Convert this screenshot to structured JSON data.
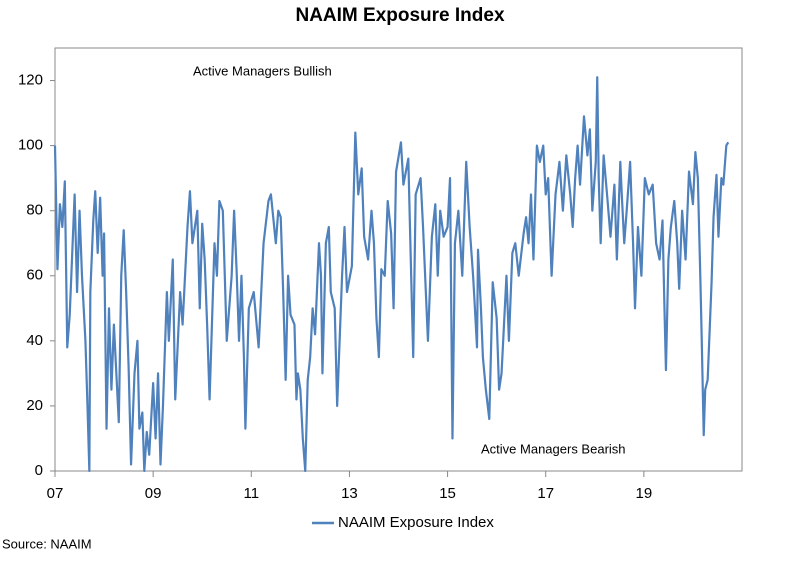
{
  "chart_data": {
    "type": "line",
    "title": "NAAIM Exposure Index",
    "annotations": [
      "Active Managers Bullish",
      "Active Managers Bearish"
    ],
    "source": "Source: NAAIM",
    "xlim": [
      2007,
      2021
    ],
    "xticks": [
      {
        "value": 2007,
        "label": "07"
      },
      {
        "value": 2009,
        "label": "09"
      },
      {
        "value": 2011,
        "label": "11"
      },
      {
        "value": 2013,
        "label": "13"
      },
      {
        "value": 2015,
        "label": "15"
      },
      {
        "value": 2017,
        "label": "17"
      },
      {
        "value": 2019,
        "label": "19"
      }
    ],
    "ylim": [
      0,
      130
    ],
    "yticks": [
      0,
      20,
      40,
      60,
      80,
      100,
      120
    ],
    "grid": false,
    "legend": "bottom",
    "x": [
      2007.0,
      2007.05,
      2007.1,
      2007.15,
      2007.2,
      2007.25,
      2007.3,
      2007.4,
      2007.45,
      2007.5,
      2007.55,
      2007.62,
      2007.66,
      2007.7,
      2007.72,
      2007.78,
      2007.82,
      2007.87,
      2007.92,
      2007.97,
      2008.0,
      2008.05,
      2008.1,
      2008.15,
      2008.2,
      2008.3,
      2008.35,
      2008.4,
      2008.45,
      2008.5,
      2008.55,
      2008.62,
      2008.68,
      2008.72,
      2008.78,
      2008.82,
      2008.87,
      2008.92,
      2009.0,
      2009.05,
      2009.1,
      2009.15,
      2009.2,
      2009.28,
      2009.32,
      2009.4,
      2009.45,
      2009.55,
      2009.6,
      2009.7,
      2009.75,
      2009.8,
      2009.9,
      2009.95,
      2010.0,
      2010.05,
      2010.1,
      2010.15,
      2010.25,
      2010.3,
      2010.35,
      2010.42,
      2010.5,
      2010.6,
      2010.65,
      2010.7,
      2010.75,
      2010.8,
      2010.85,
      2010.88,
      2010.95,
      2011.05,
      2011.15,
      2011.25,
      2011.35,
      2011.4,
      2011.5,
      2011.55,
      2011.6,
      2011.65,
      2011.7,
      2011.75,
      2011.8,
      2011.88,
      2011.92,
      2011.95,
      2012.0,
      2012.05,
      2012.1,
      2012.15,
      2012.2,
      2012.25,
      2012.3,
      2012.38,
      2012.42,
      2012.45,
      2012.52,
      2012.58,
      2012.62,
      2012.7,
      2012.75,
      2012.85,
      2012.9,
      2012.95,
      2013.05,
      2013.12,
      2013.18,
      2013.25,
      2013.3,
      2013.38,
      2013.45,
      2013.5,
      2013.55,
      2013.6,
      2013.65,
      2013.72,
      2013.78,
      2013.85,
      2013.9,
      2013.95,
      2014.05,
      2014.1,
      2014.2,
      2014.25,
      2014.3,
      2014.35,
      2014.45,
      2014.5,
      2014.6,
      2014.68,
      2014.75,
      2014.8,
      2014.85,
      2014.92,
      2015.0,
      2015.05,
      2015.1,
      2015.15,
      2015.22,
      2015.3,
      2015.38,
      2015.45,
      2015.52,
      2015.55,
      2015.6,
      2015.62,
      2015.68,
      2015.72,
      2015.78,
      2015.85,
      2015.92,
      2016.0,
      2016.05,
      2016.1,
      2016.15,
      2016.2,
      2016.25,
      2016.32,
      2016.38,
      2016.45,
      2016.55,
      2016.6,
      2016.65,
      2016.7,
      2016.75,
      2016.82,
      2016.88,
      2016.95,
      2017.0,
      2017.05,
      2017.12,
      2017.2,
      2017.28,
      2017.35,
      2017.42,
      2017.5,
      2017.55,
      2017.6,
      2017.65,
      2017.7,
      2017.78,
      2017.85,
      2017.9,
      2017.95,
      2018.02,
      2018.05,
      2018.08,
      2018.12,
      2018.18,
      2018.25,
      2018.32,
      2018.4,
      2018.45,
      2018.52,
      2018.55,
      2018.6,
      2018.65,
      2018.72,
      2018.78,
      2018.82,
      2018.88,
      2018.95,
      2019.02,
      2019.1,
      2019.18,
      2019.25,
      2019.32,
      2019.38,
      2019.42,
      2019.45,
      2019.5,
      2019.55,
      2019.62,
      2019.68,
      2019.72,
      2019.78,
      2019.85,
      2019.92,
      2020.0,
      2020.05,
      2020.1,
      2020.15,
      2020.18,
      2020.22,
      2020.25,
      2020.3,
      2020.38,
      2020.42,
      2020.48,
      2020.52,
      2020.58,
      2020.62,
      2020.68,
      2020.72
    ],
    "series": [
      {
        "name": "NAAIM Exposure Index",
        "color": "#4f81bd",
        "values": [
          100,
          62,
          82,
          75,
          89,
          38,
          48,
          85,
          55,
          80,
          60,
          40,
          21,
          0,
          55,
          77,
          86,
          67,
          84,
          60,
          73,
          13,
          50,
          25,
          45,
          15,
          60,
          74,
          55,
          32,
          2,
          30,
          40,
          13,
          18,
          0,
          12,
          5,
          27,
          10,
          30,
          2,
          20,
          55,
          40,
          65,
          22,
          55,
          45,
          75,
          86,
          70,
          80,
          50,
          76,
          65,
          45,
          22,
          70,
          60,
          83,
          80,
          40,
          60,
          80,
          62,
          40,
          60,
          35,
          13,
          50,
          55,
          38,
          70,
          83,
          85,
          70,
          80,
          78,
          55,
          28,
          60,
          48,
          45,
          22,
          30,
          25,
          10,
          0,
          28,
          35,
          50,
          42,
          70,
          60,
          30,
          70,
          75,
          55,
          50,
          20,
          60,
          75,
          55,
          63,
          104,
          85,
          93,
          72,
          65,
          80,
          70,
          47,
          35,
          62,
          60,
          83,
          73,
          50,
          92,
          101,
          88,
          96,
          65,
          35,
          85,
          90,
          75,
          40,
          72,
          82,
          60,
          80,
          72,
          75,
          90,
          10,
          70,
          80,
          60,
          95,
          75,
          60,
          52,
          38,
          68,
          50,
          35,
          25,
          16,
          58,
          47,
          25,
          30,
          45,
          60,
          40,
          67,
          70,
          60,
          73,
          78,
          70,
          85,
          65,
          100,
          95,
          100,
          85,
          90,
          60,
          85,
          95,
          80,
          97,
          85,
          75,
          90,
          100,
          88,
          109,
          97,
          105,
          80,
          95,
          121,
          90,
          70,
          97,
          85,
          72,
          88,
          65,
          95,
          85,
          70,
          80,
          95,
          70,
          50,
          75,
          60,
          90,
          85,
          88,
          70,
          65,
          77,
          50,
          31,
          65,
          75,
          83,
          70,
          56,
          80,
          65,
          92,
          82,
          98,
          90,
          60,
          40,
          11,
          25,
          28,
          58,
          78,
          91,
          72,
          90,
          88,
          100,
          101
        ]
      }
    ]
  }
}
